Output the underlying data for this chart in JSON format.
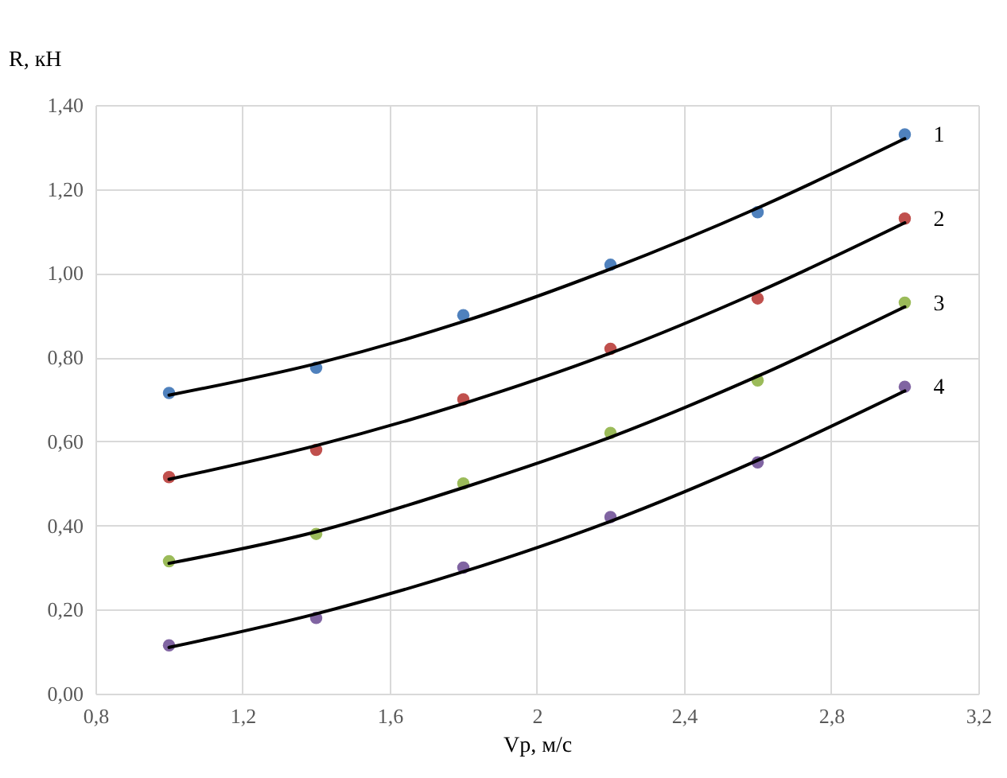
{
  "chart_data": {
    "type": "line",
    "ylabel": "R, кН",
    "xlabel": "Vр, м/с",
    "x": [
      1.0,
      1.4,
      1.8,
      2.2,
      2.6,
      3.0
    ],
    "series": [
      {
        "type": "scatter",
        "color": "#4f81bd",
        "values": [
          0.715,
          0.775,
          0.9,
          1.02,
          1.145,
          1.33
        ]
      },
      {
        "type": "scatter",
        "color": "#c0504d",
        "values": [
          0.515,
          0.58,
          0.7,
          0.82,
          0.94,
          1.13
        ]
      },
      {
        "type": "scatter",
        "color": "#9bbb59",
        "values": [
          0.315,
          0.38,
          0.5,
          0.62,
          0.745,
          0.93
        ]
      },
      {
        "type": "scatter",
        "color": "#8064a2",
        "values": [
          0.115,
          0.18,
          0.3,
          0.42,
          0.55,
          0.73
        ]
      },
      {
        "name": "1",
        "marker": "none",
        "color": "#000000",
        "values": [
          0.71,
          0.785,
          0.885,
          1.01,
          1.155,
          1.32
        ]
      },
      {
        "name": "2",
        "marker": "none",
        "color": "#000000",
        "values": [
          0.51,
          0.59,
          0.69,
          0.81,
          0.955,
          1.12
        ]
      },
      {
        "name": "3",
        "marker": "none",
        "color": "#000000",
        "values": [
          0.31,
          0.385,
          0.49,
          0.61,
          0.755,
          0.92
        ]
      },
      {
        "name": "4",
        "marker": "none",
        "color": "#000000",
        "values": [
          0.11,
          0.19,
          0.29,
          0.41,
          0.555,
          0.72
        ]
      }
    ],
    "xlim": [
      0.8,
      3.2
    ],
    "xticks": [
      {
        "value": 0.8,
        "label": "0,8"
      },
      {
        "value": 1.2,
        "label": "1,2"
      },
      {
        "value": 1.6,
        "label": "1,6"
      },
      2,
      {
        "value": 2.4,
        "label": "2,4"
      },
      {
        "value": 2.8,
        "label": "2,8"
      },
      {
        "value": 3.2,
        "label": "3,2"
      }
    ],
    "ylim": [
      0,
      1.4
    ],
    "yticks": [
      {
        "value": 0,
        "label": "0,00"
      },
      {
        "value": 0.2,
        "label": "0,20"
      },
      {
        "value": 0.4,
        "label": "0,40"
      },
      {
        "value": 0.6,
        "label": "0,60"
      },
      {
        "value": 0.8,
        "label": "0,80"
      },
      {
        "value": 1,
        "label": "1,00"
      },
      {
        "value": 1.2,
        "label": "1,20"
      },
      {
        "value": 1.4,
        "label": "1,40"
      }
    ],
    "grid": true,
    "marker": "circle",
    "line_style": "solid"
  }
}
